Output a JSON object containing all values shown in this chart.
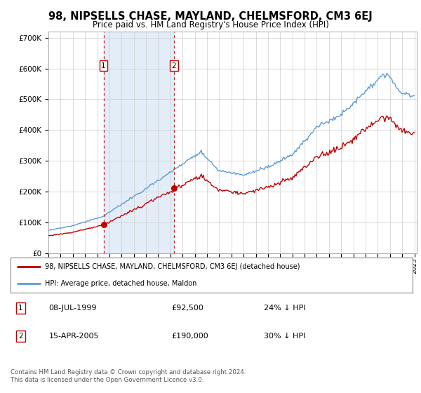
{
  "title": "98, NIPSELLS CHASE, MAYLAND, CHELMSFORD, CM3 6EJ",
  "subtitle": "Price paid vs. HM Land Registry's House Price Index (HPI)",
  "legend_line1": "98, NIPSELLS CHASE, MAYLAND, CHELMSFORD, CM3 6EJ (detached house)",
  "legend_line2": "HPI: Average price, detached house, Maldon",
  "footnote": "Contains HM Land Registry data © Crown copyright and database right 2024.\nThis data is licensed under the Open Government Licence v3.0.",
  "hpi_color": "#5b9bd5",
  "price_color": "#c00000",
  "shade_color": "#dce9f7",
  "annotation1_date": "08-JUL-1999",
  "annotation1_price": 92500,
  "annotation1_pct": "24% ↓ HPI",
  "annotation2_date": "15-APR-2005",
  "annotation2_price": 190000,
  "annotation2_pct": "30% ↓ HPI",
  "ylim_min": 0,
  "ylim_max": 720000,
  "background_color": "#ffffff",
  "grid_color": "#cccccc"
}
